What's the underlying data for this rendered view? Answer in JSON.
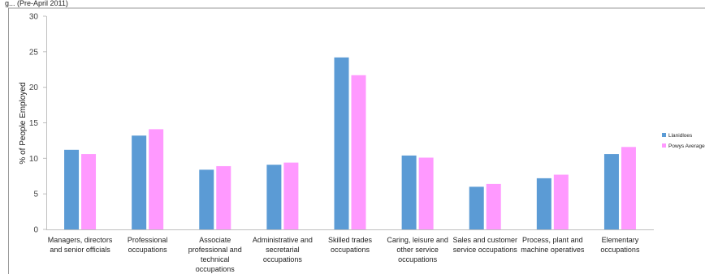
{
  "chart_data": {
    "type": "bar",
    "title_fragment": "g...  (Pre-April 2011)",
    "ylabel": "% of People Employed",
    "ylim": [
      0,
      30
    ],
    "yticks": [
      0,
      5,
      10,
      15,
      20,
      25,
      30
    ],
    "grid": false,
    "legend_position": "right",
    "categories": [
      [
        "Managers, directors",
        "and senior officials"
      ],
      [
        "Professional",
        "occupations"
      ],
      [
        "Associate",
        "professional and",
        "technical",
        "occupations"
      ],
      [
        "Administrative and",
        "secretarial",
        "occupations"
      ],
      [
        "Skilled trades",
        "occupations"
      ],
      [
        "Caring, leisure and",
        "other service",
        "occupations"
      ],
      [
        "Sales and customer",
        "service occupations"
      ],
      [
        "Process, plant and",
        "machine operatives"
      ],
      [
        "Elementary",
        "occupations"
      ]
    ],
    "series": [
      {
        "name": "Llanidloes",
        "color": "#5b9bd5",
        "values": [
          11.2,
          13.2,
          8.4,
          9.1,
          24.2,
          10.4,
          6.0,
          7.2,
          10.6
        ]
      },
      {
        "name": "Powys Average",
        "color": "#ff99ff",
        "values": [
          10.6,
          14.1,
          8.9,
          9.4,
          21.7,
          10.1,
          6.4,
          7.7,
          11.6
        ]
      }
    ]
  }
}
